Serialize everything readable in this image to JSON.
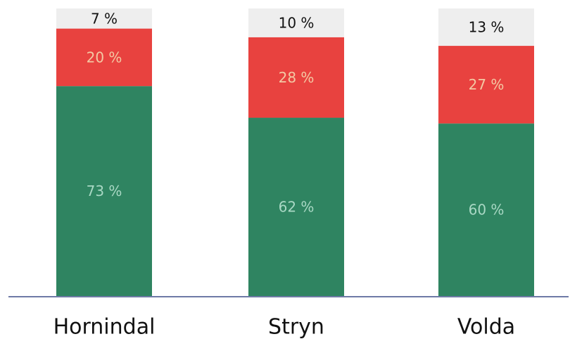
{
  "chart_data": {
    "type": "bar",
    "stacked": true,
    "percent_stacked": true,
    "categories": [
      "Hornindal",
      "Stryn",
      "Volda"
    ],
    "series": [
      {
        "values": [
          73,
          62,
          60
        ],
        "color": "#2f8461",
        "label_color": "#a9d8c4"
      },
      {
        "values": [
          20,
          28,
          27
        ],
        "color": "#e8423f",
        "label_color": "#f3c9a4"
      },
      {
        "values": [
          7,
          10,
          13
        ],
        "color": "#eeeeee",
        "label_color": "#111111"
      }
    ],
    "data_labels": [
      [
        "73 %",
        "62 %",
        "60 %"
      ],
      [
        "20 %",
        "28 %",
        "27 %"
      ],
      [
        "7 %",
        "10 %",
        "13 %"
      ]
    ],
    "ylim": [
      0,
      100
    ],
    "title": "",
    "xlabel": "",
    "ylabel": "",
    "grid": false,
    "legend": "none",
    "baseline_color": "#6e7aa6"
  }
}
